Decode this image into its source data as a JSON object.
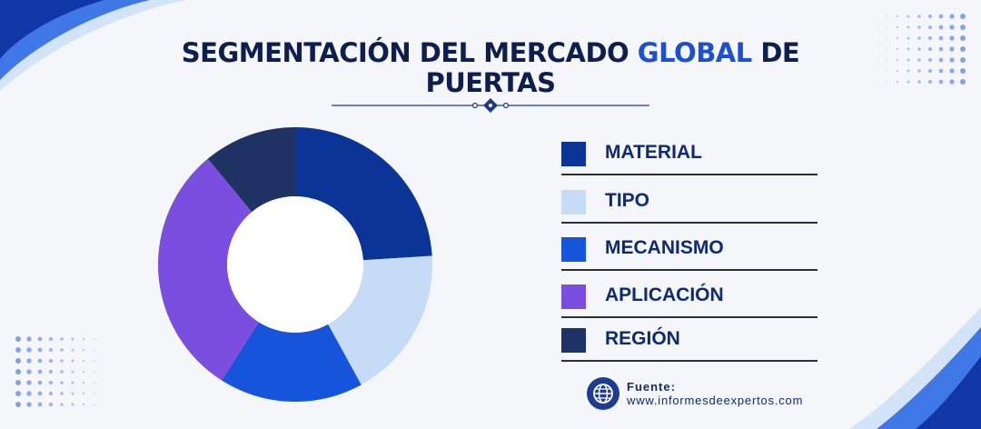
{
  "title": {
    "part1": "SEGMENTACIÓN DEL MERCADO ",
    "highlight": "GLOBAL",
    "part2": " DE",
    "line2": "PUERTAS"
  },
  "chart_data": {
    "type": "pie",
    "style": "donut",
    "title": "SEGMENTACIÓN DEL MERCADO GLOBAL DE PUERTAS",
    "legend_position": "right",
    "series": [
      {
        "name": "MATERIAL",
        "value": 24,
        "color": "#0a3597"
      },
      {
        "name": "TIPO",
        "value": 18,
        "color": "#c6dcf6"
      },
      {
        "name": "MECANISMO",
        "value": 17,
        "color": "#1554db"
      },
      {
        "name": "APLICACIÓN",
        "value": 30,
        "color": "#7a4ede"
      },
      {
        "name": "REGIÓN",
        "value": 11,
        "color": "#1e3364"
      }
    ]
  },
  "source": {
    "label": "Fuente:",
    "url": "www.informesdeexpertos.com"
  },
  "colors": {
    "accent": "#1d4fd0",
    "title": "#0e1e4f",
    "legend_text": "#0e2a73"
  }
}
